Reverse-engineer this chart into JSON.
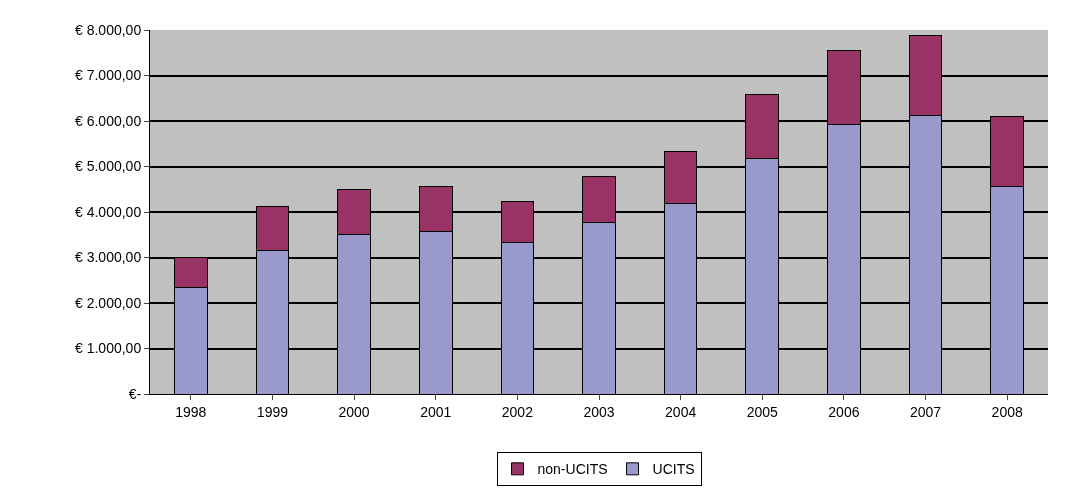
{
  "chart_data": {
    "type": "bar",
    "stacked": true,
    "categories": [
      "1998",
      "1999",
      "2000",
      "2001",
      "2002",
      "2003",
      "2004",
      "2005",
      "2006",
      "2007",
      "2008"
    ],
    "series": [
      {
        "name": "UCITS",
        "color": "#9999cc",
        "values": [
          2340,
          3160,
          3500,
          3570,
          3330,
          3760,
          4180,
          5180,
          5920,
          6130,
          4560
        ]
      },
      {
        "name": "non-UCITS",
        "color": "#993366",
        "values": [
          660,
          960,
          990,
          1000,
          900,
          1030,
          1150,
          1400,
          1620,
          1750,
          1530
        ]
      }
    ],
    "ylim": [
      0,
      8000
    ],
    "yticks": [
      {
        "value": 0,
        "label": "€-"
      },
      {
        "value": 1000,
        "label": "€ 1.000,00"
      },
      {
        "value": 2000,
        "label": "€ 2.000,00"
      },
      {
        "value": 3000,
        "label": "€ 3.000,00"
      },
      {
        "value": 4000,
        "label": "€ 4.000,00"
      },
      {
        "value": 5000,
        "label": "€ 5.000,00"
      },
      {
        "value": 6000,
        "label": "€ 6.000,00"
      },
      {
        "value": 7000,
        "label": "€ 7.000,00"
      },
      {
        "value": 8000,
        "label": "€ 8.000,00"
      }
    ],
    "grid": "y",
    "legend": "bottom"
  }
}
